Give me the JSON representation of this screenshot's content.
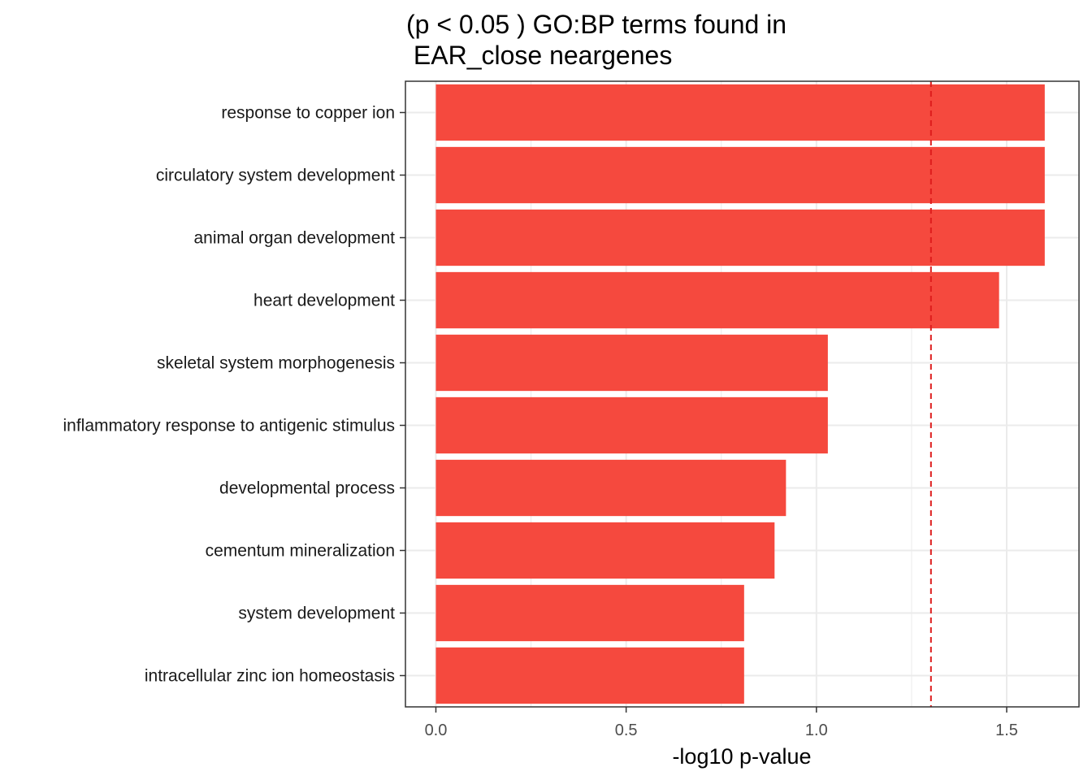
{
  "chart_data": {
    "type": "bar",
    "orientation": "horizontal",
    "title_lines": [
      "(p < 0.05 ) GO:BP terms found in",
      " EAR_close neargenes"
    ],
    "xlabel": "-log10 p-value",
    "ylabel": "",
    "categories": [
      "response to copper ion",
      "circulatory system development",
      "animal organ development",
      "heart development",
      "skeletal system morphogenesis",
      "inflammatory response to antigenic stimulus",
      "developmental process",
      "cementum mineralization",
      "system development",
      "intracellular zinc ion homeostasis"
    ],
    "values": [
      1.6,
      1.6,
      1.6,
      1.48,
      1.03,
      1.03,
      0.92,
      0.89,
      0.81,
      0.81
    ],
    "xlim": [
      -0.08,
      1.69
    ],
    "xticks": [
      0.0,
      0.5,
      1.0,
      1.5
    ],
    "xtick_labels": [
      "0.0",
      "0.5",
      "1.0",
      "1.5"
    ],
    "threshold_line": 1.301,
    "grid": true,
    "bar_color": "#F5493E",
    "threshold_color": "#DD1C1C",
    "legend": "none"
  }
}
